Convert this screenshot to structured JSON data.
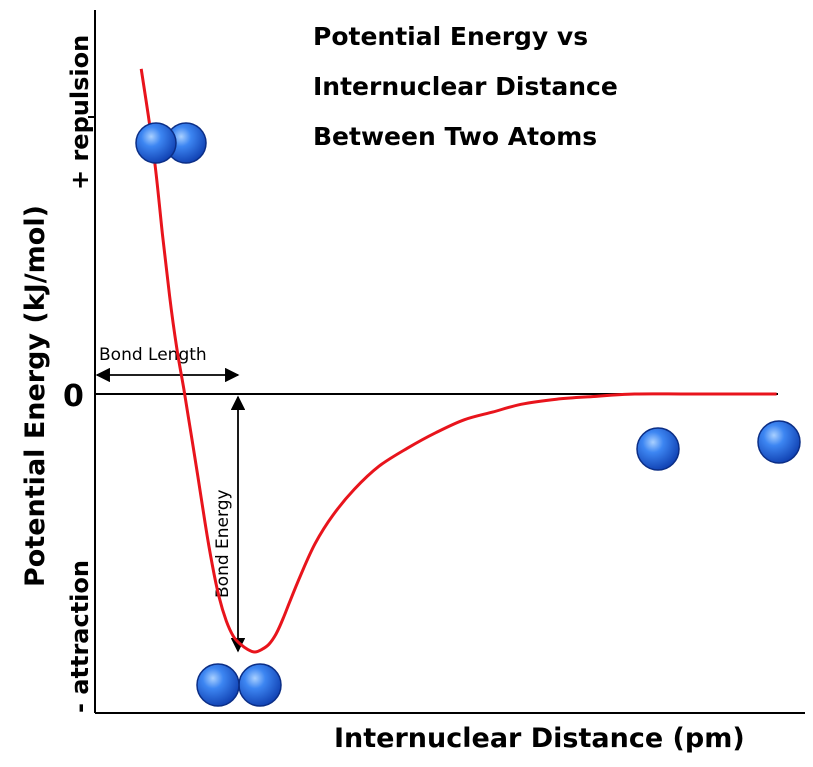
{
  "chart_data": {
    "type": "line",
    "title": [
      "Potential Energy vs",
      "Internuclear Distance",
      "Between Two Atoms"
    ],
    "xlabel": "Internuclear Distance (pm)",
    "ylabel": "Potential Energy (kJ/mol)",
    "y_positive_label": "+ repulsion",
    "y_negative_label": "- attraction",
    "y_tick_label": "0",
    "annotations": {
      "bond_length": "Bond Length",
      "bond_energy": "Bond Energy"
    },
    "series": [
      {
        "color": "#e8141c",
        "points": [
          [
            0.065,
            1.26
          ],
          [
            0.075,
            1.08
          ],
          [
            0.085,
            0.88
          ],
          [
            0.095,
            0.62
          ],
          [
            0.105,
            0.38
          ],
          [
            0.115,
            0.18
          ],
          [
            0.125,
            0.02
          ],
          [
            0.135,
            -0.15
          ],
          [
            0.145,
            -0.32
          ],
          [
            0.155,
            -0.5
          ],
          [
            0.165,
            -0.66
          ],
          [
            0.175,
            -0.79
          ],
          [
            0.185,
            -0.88
          ],
          [
            0.195,
            -0.94
          ],
          [
            0.205,
            -0.97
          ],
          [
            0.215,
            -0.99
          ],
          [
            0.225,
            -1.0
          ],
          [
            0.235,
            -0.99
          ],
          [
            0.245,
            -0.97
          ],
          [
            0.255,
            -0.93
          ],
          [
            0.265,
            -0.87
          ],
          [
            0.275,
            -0.8
          ],
          [
            0.29,
            -0.7
          ],
          [
            0.31,
            -0.58
          ],
          [
            0.335,
            -0.47
          ],
          [
            0.365,
            -0.37
          ],
          [
            0.4,
            -0.28
          ],
          [
            0.44,
            -0.21
          ],
          [
            0.48,
            -0.15
          ],
          [
            0.52,
            -0.1
          ],
          [
            0.56,
            -0.07
          ],
          [
            0.6,
            -0.04
          ],
          [
            0.65,
            -0.02
          ],
          [
            0.7,
            -0.01
          ],
          [
            0.76,
            0.0
          ],
          [
            0.84,
            0.0
          ],
          [
            0.96,
            0.0
          ]
        ]
      }
    ],
    "minimum": {
      "x": 0.225,
      "y": -1.0
    },
    "zero_crossing_x": 0.125,
    "atom_color": "#1e5fe0",
    "grid": false,
    "legend": "none"
  }
}
